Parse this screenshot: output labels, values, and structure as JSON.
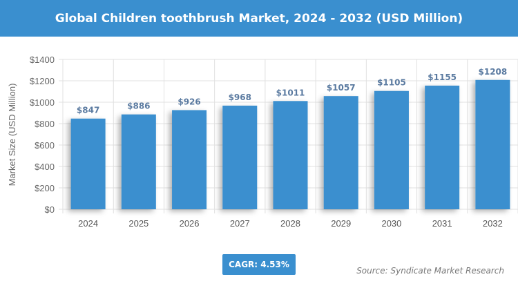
{
  "header": {
    "title": "Global Children toothbrush Market, 2024 - 2032 (USD Million)"
  },
  "cagr": "CAGR: 4.53%",
  "source": "Source: Syndicate Market Research",
  "chart_data": {
    "type": "bar",
    "title": "Global Children toothbrush Market, 2024 - 2032 (USD Million)",
    "xlabel": "",
    "ylabel": "Market Size (USD Million)",
    "categories": [
      "2024",
      "2025",
      "2026",
      "2027",
      "2028",
      "2029",
      "2030",
      "2031",
      "2032"
    ],
    "values": [
      847,
      886,
      926,
      968,
      1011,
      1057,
      1105,
      1155,
      1208
    ],
    "data_labels": [
      "$847",
      "$886",
      "$926",
      "$968",
      "$1011",
      "$1057",
      "$1105",
      "$1155",
      "$1208"
    ],
    "ylim": [
      0,
      1400
    ],
    "yticks": [
      0,
      200,
      400,
      600,
      800,
      1000,
      1200,
      1400
    ],
    "ytick_labels": [
      "$0",
      "$200",
      "$400",
      "$600",
      "$800",
      "$1000",
      "$1200",
      "$1400"
    ],
    "grid": true,
    "bar_color": "#3a8fcf",
    "label_color": "#5a7aa0"
  }
}
